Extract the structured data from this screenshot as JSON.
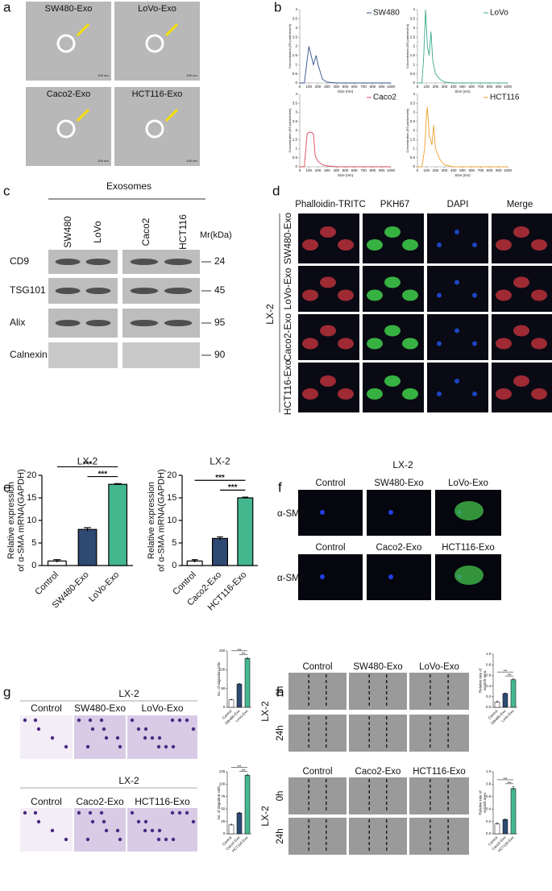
{
  "panel_letters": [
    "a",
    "b",
    "c",
    "d",
    "e",
    "f",
    "g",
    "h"
  ],
  "tem": {
    "labels": [
      "SW480-Exo",
      "LoVo-Exo",
      "Caco2-Exo",
      "HCT116-Exo"
    ],
    "scale": "100 nm"
  },
  "western": {
    "group": "Exosomes",
    "lanes": [
      "SW480",
      "LoVo",
      "Caco2",
      "HCT116"
    ],
    "unit": "Mr(kDa)",
    "rows": [
      {
        "label": "CD9",
        "mr": 24
      },
      {
        "label": "TSG101",
        "mr": 45
      },
      {
        "label": "Alix",
        "mr": 95
      },
      {
        "label": "Calnexin",
        "mr": 90
      }
    ]
  },
  "fluor": {
    "columns": [
      "Phalloidin-TRITC",
      "PKH67",
      "DAPI",
      "Merge"
    ],
    "rows": [
      "SW480-Exo",
      "LoVo-Exo",
      "Caco2-Exo",
      "HCT116-Exo"
    ],
    "cell": "LX-2"
  },
  "alpha": {
    "title": "LX-2",
    "rows": [
      {
        "headers": [
          "Control",
          "SW480-Exo",
          "LoVo-Exo"
        ],
        "label": "α-SMA"
      },
      {
        "headers": [
          "Control",
          "Caco2-Exo",
          "HCT116-Exo"
        ],
        "label": "α-SMA"
      }
    ]
  },
  "migration": {
    "groups": [
      {
        "title": "LX-2",
        "headers": [
          "Control",
          "SW480-Exo",
          "LoVo-Exo"
        ]
      },
      {
        "title": "LX-2",
        "headers": [
          "Control",
          "Caco2-Exo",
          "HCT116-Exo"
        ]
      }
    ]
  },
  "scratch": {
    "cell": "LX-2",
    "times": [
      "0h",
      "24h"
    ],
    "groups": [
      {
        "headers": [
          "Control",
          "SW480-Exo",
          "LoVo-Exo"
        ]
      },
      {
        "headers": [
          "Control",
          "Caco2-Exo",
          "HCT116-Exo"
        ]
      }
    ]
  },
  "chart_data": [
    {
      "type": "line",
      "xlabel": "Size (nm)",
      "ylabel": "Concentration (E6 particles/ml)",
      "xlim": [
        0,
        1000
      ],
      "ylim": [
        0,
        4
      ],
      "xticks": [
        0,
        100,
        200,
        300,
        400,
        500,
        600,
        700,
        800,
        900,
        1000
      ],
      "yticks": [
        0,
        0.5,
        1,
        1.5,
        2,
        2.5,
        3,
        3.5,
        4
      ],
      "x": [
        0,
        50,
        80,
        100,
        120,
        150,
        180,
        200,
        250,
        300,
        400,
        500,
        1000
      ],
      "series": [
        {
          "name": "SW480",
          "color": "#2f4f8a",
          "values": [
            0,
            0,
            1.2,
            2,
            1.6,
            1,
            1.5,
            1,
            0.2,
            0.05,
            0,
            0,
            0
          ]
        }
      ]
    },
    {
      "type": "line",
      "xlabel": "Size (nm)",
      "ylabel": "Concentration (E6 particles/ml)",
      "xlim": [
        0,
        1000
      ],
      "ylim": [
        0,
        4
      ],
      "xticks": [
        0,
        100,
        200,
        300,
        400,
        500,
        600,
        700,
        800,
        900,
        1000
      ],
      "yticks": [
        0,
        0.5,
        1,
        1.5,
        2,
        2.5,
        3,
        3.5,
        4
      ],
      "x": [
        0,
        50,
        70,
        90,
        110,
        130,
        150,
        170,
        200,
        250,
        300,
        400,
        1000
      ],
      "series": [
        {
          "name": "LoVo",
          "color": "#3aa88a",
          "values": [
            0,
            0,
            1.5,
            4,
            2,
            1.5,
            2.8,
            1.2,
            0.5,
            0.2,
            0.05,
            0,
            0
          ]
        }
      ]
    },
    {
      "type": "line",
      "xlabel": "Size (nm)",
      "ylabel": "Concentration (E6 particles/ml)",
      "xlim": [
        0,
        1000
      ],
      "ylim": [
        0,
        4
      ],
      "xticks": [
        0,
        100,
        200,
        300,
        400,
        500,
        600,
        700,
        800,
        900,
        1000
      ],
      "yticks": [
        0,
        0.5,
        1,
        1.5,
        2,
        2.5,
        3,
        3.5,
        4
      ],
      "x": [
        0,
        50,
        80,
        100,
        130,
        150,
        170,
        200,
        250,
        300,
        400,
        1000
      ],
      "series": [
        {
          "name": "Caco2",
          "color": "#d9475a",
          "values": [
            0,
            0,
            1.8,
            1.9,
            1.9,
            1.8,
            0.6,
            0.3,
            0.1,
            0.05,
            0,
            0
          ]
        }
      ]
    },
    {
      "type": "line",
      "xlabel": "Size (nm)",
      "ylabel": "Concentration (E6 particles/ml)",
      "xlim": [
        0,
        1000
      ],
      "ylim": [
        0,
        4
      ],
      "xticks": [
        0,
        100,
        200,
        300,
        400,
        500,
        600,
        700,
        800,
        900,
        1000
      ],
      "yticks": [
        0,
        0.5,
        1,
        1.5,
        2,
        2.5,
        3,
        3.5,
        4
      ],
      "x": [
        0,
        50,
        80,
        100,
        110,
        130,
        160,
        180,
        200,
        250,
        300,
        400,
        1000
      ],
      "series": [
        {
          "name": "HCT116",
          "color": "#f0a030",
          "values": [
            0,
            0,
            1,
            2.8,
            3.3,
            1.8,
            1.2,
            2.3,
            1,
            0.4,
            0.1,
            0,
            0
          ]
        }
      ]
    },
    {
      "type": "bar",
      "title": "LX-2",
      "ylabel": [
        "Relative expression",
        "of α-SMA mRNA(GAPDH)"
      ],
      "ylim": [
        0,
        20
      ],
      "yticks": [
        0,
        5,
        10,
        15,
        20
      ],
      "categories": [
        "Control",
        "SW480-Exo",
        "LoVo-Exo"
      ],
      "values": [
        1,
        8,
        18
      ],
      "errors": [
        0.3,
        0.4,
        0.15
      ],
      "colors": [
        "#ffffff",
        "#2e4a72",
        "#45b78f"
      ],
      "annotations": [
        "***",
        "***"
      ]
    },
    {
      "type": "bar",
      "title": "LX-2",
      "ylabel": [
        "Relative expression",
        "of α-SMA mRNA(GAPDH)"
      ],
      "ylim": [
        0,
        20
      ],
      "yticks": [
        0,
        5,
        10,
        15,
        20
      ],
      "categories": [
        "Control",
        "Caco2-Exo",
        "HCT116-Exo"
      ],
      "values": [
        1,
        6,
        15
      ],
      "errors": [
        0.3,
        0.35,
        0.15
      ],
      "colors": [
        "#ffffff",
        "#2e4a72",
        "#45b78f"
      ],
      "annotations": [
        "***",
        "***"
      ]
    },
    {
      "type": "bar",
      "ylabel": [
        "No. of migration cells"
      ],
      "ylim": [
        0,
        150
      ],
      "yticks": [
        0,
        50,
        100,
        150
      ],
      "categories": [
        "Control",
        "SW480-Exo",
        "LoVo-Exo"
      ],
      "values": [
        20,
        62,
        130
      ],
      "errors": [
        1.5,
        1.5,
        2
      ],
      "colors": [
        "#ffffff",
        "#2e4a72",
        "#45b78f"
      ],
      "annotations": [
        "***",
        "***"
      ]
    },
    {
      "type": "bar",
      "ylabel": [
        "No. of migration cells"
      ],
      "ylim": [
        0,
        125
      ],
      "yticks": [
        0,
        25,
        50,
        75,
        100,
        125
      ],
      "categories": [
        "Control",
        "Caco2-Exo",
        "HCT116-Exo"
      ],
      "values": [
        18,
        42,
        118
      ],
      "errors": [
        1.5,
        1.5,
        2
      ],
      "colors": [
        "#ffffff",
        "#2e4a72",
        "#45b78f"
      ],
      "annotations": [
        "***",
        "***"
      ]
    },
    {
      "type": "bar",
      "ylabel": [
        "Relative rate of",
        "scratch area"
      ],
      "ylim": [
        0,
        1
      ],
      "yticks": [
        {
          "value": 0,
          "label": "0.0"
        },
        0.2,
        0.4,
        0.6,
        0.8,
        {
          "value": 1,
          "label": "1.0"
        }
      ],
      "categories": [
        "Control",
        "SW480-Exo",
        "LoVo-Exo"
      ],
      "values": [
        0.1,
        0.26,
        0.52
      ],
      "errors": [
        0.02,
        0.01,
        0.015
      ],
      "colors": [
        "#ffffff",
        "#2e4a72",
        "#45b78f"
      ],
      "annotations": [
        "***",
        "***"
      ]
    },
    {
      "type": "bar",
      "ylabel": [
        "Relative rate of",
        "scratch area"
      ],
      "ylim": [
        0,
        1
      ],
      "yticks": [
        {
          "value": 0,
          "label": "0.0"
        },
        0.2,
        0.4,
        0.6,
        0.8,
        {
          "value": 1,
          "label": "1.0"
        }
      ],
      "categories": [
        "Control",
        "Caco2-Exo",
        "HCT116-Exo"
      ],
      "values": [
        0.16,
        0.23,
        0.73
      ],
      "errors": [
        0.02,
        0.015,
        0.03
      ],
      "colors": [
        "#ffffff",
        "#2e4a72",
        "#45b78f"
      ],
      "annotations": [
        "***",
        "***"
      ]
    }
  ]
}
